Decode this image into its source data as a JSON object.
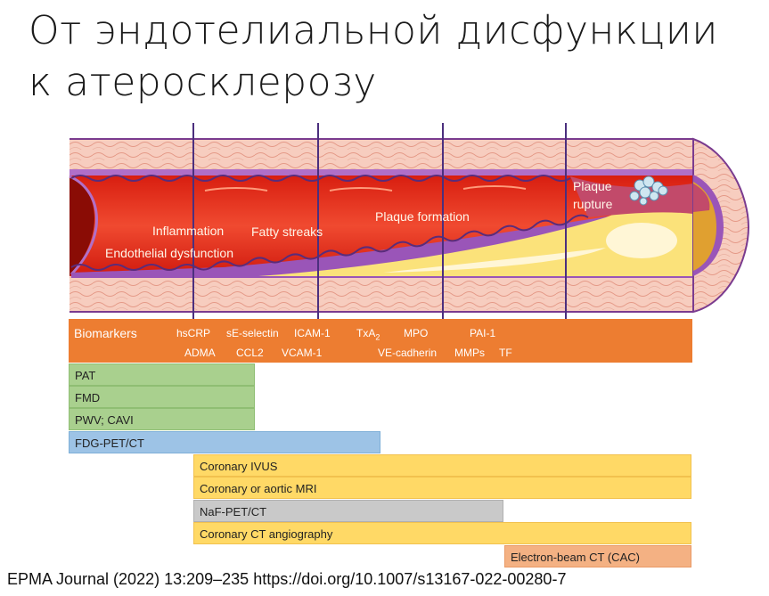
{
  "title": {
    "line1": "От эндотелиальной дисфункции",
    "line2": "к атеросклерозу"
  },
  "artery": {
    "stages": {
      "endothelial_dysfunction": "Endothelial dysfunction",
      "inflammation": "Inflammation",
      "fatty_streaks": "Fatty streaks",
      "plaque_formation": "Plaque formation",
      "plaque_rupture_1": "Plaque",
      "plaque_rupture_2": "rupture"
    }
  },
  "biomarkers": {
    "label": "Biomarkers",
    "row1": {
      "hscrp": "hsCRP",
      "se_selectin": "sE-selectin",
      "icam1": "ICAM-1",
      "txa2_base": "TxA",
      "txa2_sub": "2",
      "mpo": "MPO",
      "pai1": "PAI-1"
    },
    "row2": {
      "adma": "ADMA",
      "ccl2": "CCL2",
      "vcam1": "VCAM-1",
      "ve_cadherin": "VE-cadherin",
      "mmps": "MMPs",
      "tf": "TF"
    }
  },
  "methods": {
    "pat": "PAT",
    "fmd": "FMD",
    "pwv_cavi": "PWV; CAVI",
    "fdg_pet": "FDG-PET/CT",
    "coronary_ivus": "Coronary IVUS",
    "coronary_mri": "Coronary or aortic MRI",
    "naf_pet": "NaF-PET/CT",
    "coronary_cta": "Coronary CT angiography",
    "ebct": "Electron-beam CT (CAC)"
  },
  "colors": {
    "biomarkers_bar": "#ed7d31",
    "functional_methods": "#a9d08e",
    "fdg_pet": "#9dc3e6",
    "imaging_methods": "#ffd966",
    "naf_pet": "#c9c9c9",
    "ebct": "#f4b183",
    "lumen": "#e8301e",
    "plaque": "#fbe27a",
    "stage_divider": "#4b2f7e"
  },
  "citation": "EPMA Journal (2022) 13:209–235 https://doi.org/10.1007/s13167-022-00280-7"
}
